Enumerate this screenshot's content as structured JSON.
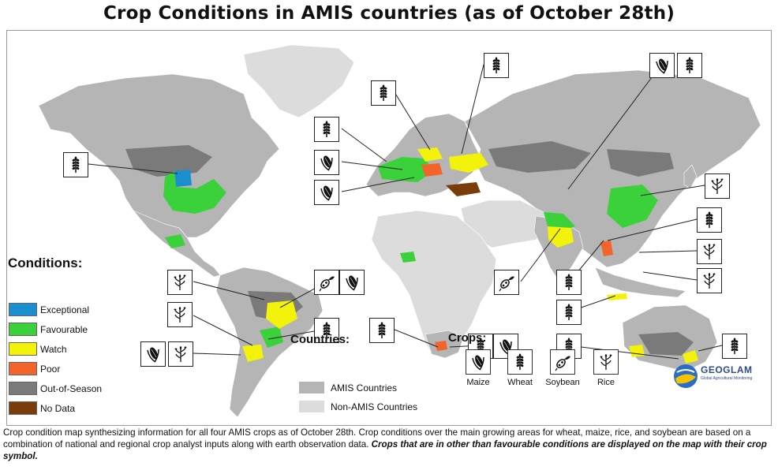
{
  "title": "Crop Conditions in AMIS countries (as of October 28th)",
  "legend_conditions": {
    "title": "Conditions:",
    "items": [
      {
        "label": "Exceptional",
        "color": "#1a8fd0"
      },
      {
        "label": "Favourable",
        "color": "#3ad13a"
      },
      {
        "label": "Watch",
        "color": "#f2f20a"
      },
      {
        "label": "Poor",
        "color": "#f2642a"
      },
      {
        "label": "Out-of-Season",
        "color": "#7a7a7a"
      },
      {
        "label": "No Data",
        "color": "#7a3d0a"
      }
    ]
  },
  "legend_countries": {
    "title": "Countries:",
    "items": [
      {
        "label": "AMIS Countries",
        "color": "#b5b5b5"
      },
      {
        "label": "Non-AMIS Countries",
        "color": "#dcdcdc"
      }
    ]
  },
  "legend_crops": {
    "title": "Crops:",
    "items": [
      {
        "label": "Maize",
        "icon": "maize-icon"
      },
      {
        "label": "Wheat",
        "icon": "wheat-icon"
      },
      {
        "label": "Soybean",
        "icon": "soybean-icon"
      },
      {
        "label": "Rice",
        "icon": "rice-icon"
      }
    ]
  },
  "logo": {
    "name": "GEOGLAM",
    "subtitle": "Global Agricultural Monitoring"
  },
  "caption": {
    "text": "Crop condition map synthesizing information for all four AMIS crops as of October 28th. Crop conditions over the main growing areas for wheat, maize, rice, and soybean are based on a combination of national and regional crop analyst inputs along with earth observation data. ",
    "emphasis": "Crops that are in other than favourable conditions are displayed on the map with their crop symbol."
  },
  "callouts": [
    {
      "crop": "wheat",
      "region": "Canada"
    },
    {
      "crop": "wheat",
      "region": "Northern Europe"
    },
    {
      "crop": "wheat",
      "region": "Western Europe"
    },
    {
      "crop": "maize",
      "region": "Europe"
    },
    {
      "crop": "maize",
      "region": "Southern Europe"
    },
    {
      "crop": "wheat",
      "region": "Ukraine / Russia"
    },
    {
      "crop": "maize",
      "region": "Russia"
    },
    {
      "crop": "wheat",
      "region": "Kazakhstan"
    },
    {
      "crop": "rice",
      "region": "China"
    },
    {
      "crop": "soybean",
      "region": "India"
    },
    {
      "crop": "wheat",
      "region": "Southeast Asia"
    },
    {
      "crop": "rice",
      "region": "Southeast Asia"
    },
    {
      "crop": "rice",
      "region": "Philippines"
    },
    {
      "crop": "rice",
      "region": "Indonesia"
    },
    {
      "crop": "wheat",
      "region": "Australia"
    },
    {
      "crop": "wheat",
      "region": "Australia south"
    },
    {
      "crop": "wheat",
      "region": "Australia east"
    },
    {
      "crop": "wheat",
      "region": "South Africa"
    },
    {
      "crop": "maize",
      "region": "South Africa"
    },
    {
      "crop": "rice",
      "region": "Brazil"
    },
    {
      "crop": "soybean",
      "region": "Brazil"
    },
    {
      "crop": "maize",
      "region": "Brazil"
    },
    {
      "crop": "rice",
      "region": "Paraguay"
    },
    {
      "crop": "wheat",
      "region": "Brazil south"
    },
    {
      "crop": "maize",
      "region": "Argentina"
    },
    {
      "crop": "rice",
      "region": "Argentina"
    }
  ]
}
